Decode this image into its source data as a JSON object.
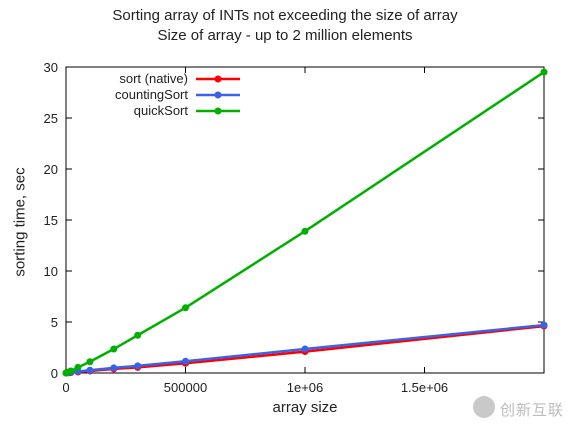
{
  "chart_data": {
    "type": "line",
    "title": "Sorting array of INTs not exceeding the size of array",
    "subtitle": "Size of array - up to 2 million elements",
    "xlabel": "array size",
    "ylabel": "sorting time, sec",
    "xlim": [
      0,
      2000000
    ],
    "ylim": [
      0,
      30
    ],
    "xticks": [
      0,
      500000,
      1000000,
      1500000
    ],
    "xtick_labels": [
      "0",
      "500000",
      "1e+06",
      "1.5e+06"
    ],
    "yticks": [
      0,
      5,
      10,
      15,
      20,
      25,
      30
    ],
    "ytick_labels": [
      "0",
      "5",
      "10",
      "15",
      "20",
      "25",
      "30"
    ],
    "grid": false,
    "legend_position": "top-left",
    "series": [
      {
        "name": "sort (native)",
        "color": "#ff0000",
        "x": [
          0,
          10000,
          20000,
          50000,
          100000,
          200000,
          300000,
          500000,
          1000000,
          2000000
        ],
        "y": [
          0,
          0.02,
          0.04,
          0.1,
          0.2,
          0.4,
          0.55,
          0.95,
          2.1,
          4.6
        ]
      },
      {
        "name": "countingSort",
        "color": "#3a62e8",
        "x": [
          0,
          10000,
          20000,
          50000,
          100000,
          200000,
          300000,
          500000,
          1000000,
          2000000
        ],
        "y": [
          0,
          0.03,
          0.06,
          0.15,
          0.27,
          0.5,
          0.7,
          1.15,
          2.35,
          4.7
        ]
      },
      {
        "name": "quickSort",
        "color": "#00b000",
        "x": [
          0,
          10000,
          20000,
          50000,
          100000,
          200000,
          300000,
          500000,
          1000000,
          2000000
        ],
        "y": [
          0,
          0.1,
          0.2,
          0.55,
          1.1,
          2.35,
          3.7,
          6.4,
          13.9,
          29.5
        ]
      }
    ]
  },
  "watermark": {
    "text": "创新互联"
  }
}
